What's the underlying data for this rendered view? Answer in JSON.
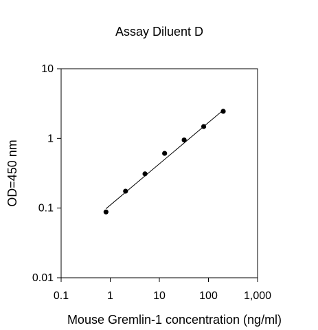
{
  "chart_data": {
    "type": "scatter",
    "title": "Assay Diluent D",
    "xlabel": "Mouse Gremlin-1 concentration (ng/ml)",
    "ylabel": "OD=450 nm",
    "x_scale": "log",
    "y_scale": "log",
    "xlim": [
      0.1,
      1000
    ],
    "ylim": [
      0.01,
      10
    ],
    "x_ticks": [
      0.1,
      1,
      10,
      100,
      1000
    ],
    "x_tick_labels": [
      "0.1",
      "1",
      "10",
      "100",
      "1,000"
    ],
    "y_ticks": [
      0.01,
      0.1,
      1,
      10
    ],
    "y_tick_labels": [
      "0.01",
      "0.1",
      "1",
      "10"
    ],
    "grid": false,
    "legend": "none",
    "series": [
      {
        "points": [
          {
            "x": 0.82,
            "y": 0.088
          },
          {
            "x": 2.05,
            "y": 0.175
          },
          {
            "x": 5.1,
            "y": 0.31
          },
          {
            "x": 12.8,
            "y": 0.61
          },
          {
            "x": 32,
            "y": 0.95
          },
          {
            "x": 80,
            "y": 1.48
          },
          {
            "x": 200,
            "y": 2.45
          }
        ],
        "color": "#000000"
      }
    ],
    "fit_line": {
      "x": [
        0.82,
        200
      ],
      "y": [
        0.098,
        2.55
      ],
      "color": "#000000"
    }
  }
}
